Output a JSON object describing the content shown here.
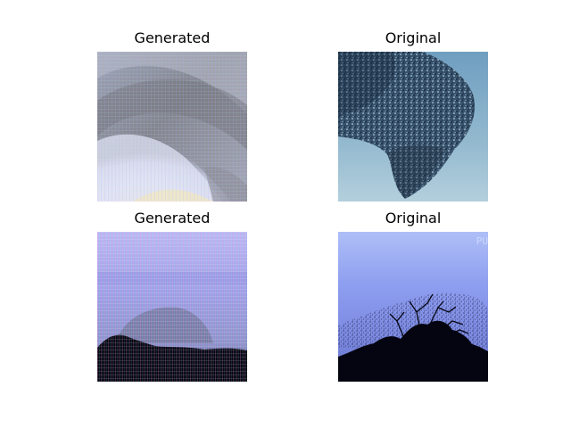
{
  "figure": {
    "panels": [
      {
        "title": "Generated",
        "kind": "generated-sky-1"
      },
      {
        "title": "Original",
        "kind": "original-murmuration-1"
      },
      {
        "title": "Generated",
        "kind": "generated-sky-2"
      },
      {
        "title": "Original",
        "kind": "original-murmuration-2"
      }
    ],
    "watermark_text": "PU"
  },
  "colors": {
    "background": "#ffffff",
    "text": "#000000",
    "sky_light_blue": "#a9c7d8",
    "sky_blue": "#7fa8c5",
    "flock_dark": "#1c2b3d",
    "gen_gray": "#8d8f9b",
    "gen_light": "#dadcf3",
    "gen_cream": "#efe5c9",
    "dusk_blue": "#7d8ee6",
    "silhouette": "#050511"
  }
}
